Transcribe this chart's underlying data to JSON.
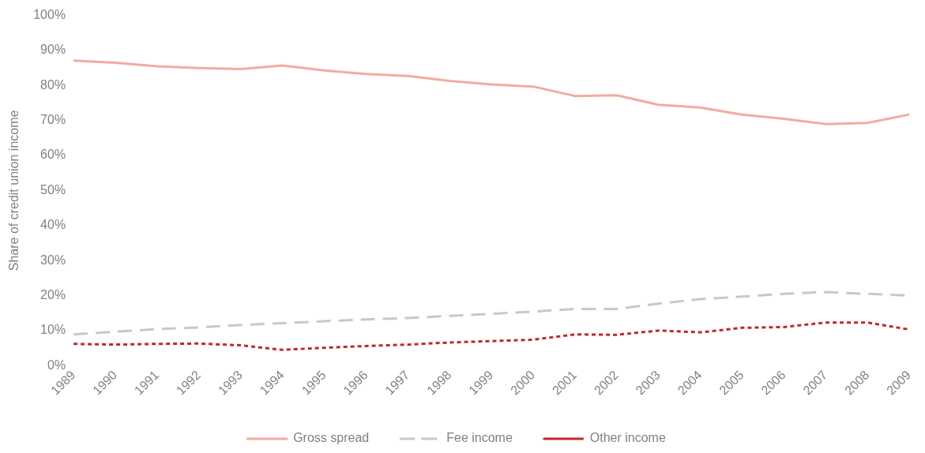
{
  "chart_data": {
    "type": "line",
    "ylabel": "Share of credit union income",
    "categories": [
      "1989",
      "1990",
      "1991",
      "1992",
      "1993",
      "1994",
      "1995",
      "1996",
      "1997",
      "1998",
      "1999",
      "2000",
      "2001",
      "2002",
      "2003",
      "2004",
      "2005",
      "2006",
      "2007",
      "2008",
      "2009"
    ],
    "series": [
      {
        "name": "Gross spread",
        "color": "#f2aba0",
        "line_style": "solid",
        "values": [
          87.1,
          86.5,
          85.5,
          85,
          84.7,
          85.7,
          84.3,
          83.3,
          82.7,
          81.3,
          80.3,
          79.7,
          77,
          77.2,
          74.5,
          73.7,
          71.7,
          70.5,
          69,
          69.3,
          71.7
        ]
      },
      {
        "name": "Fee income",
        "color": "#c8c8c8",
        "line_style": "dashed",
        "values": [
          8.9,
          9.7,
          10.4,
          10.9,
          11.6,
          12.1,
          12.7,
          13.2,
          13.6,
          14.2,
          14.8,
          15.4,
          16.2,
          16.2,
          17.7,
          19,
          19.7,
          20.5,
          21,
          20.5,
          20
        ]
      },
      {
        "name": "Other income",
        "color": "#c0272d",
        "line_style": "dotted",
        "values": [
          6.2,
          6,
          6.2,
          6.3,
          5.8,
          4.5,
          5.1,
          5.6,
          6,
          6.6,
          7,
          7.4,
          8.9,
          8.8,
          10,
          9.5,
          10.8,
          11,
          12.3,
          12.3,
          10.3
        ]
      }
    ],
    "ylim": [
      0,
      100
    ],
    "yticks": [
      {
        "value": 0,
        "label": "0%"
      },
      {
        "value": 10,
        "label": "10%"
      },
      {
        "value": 20,
        "label": "20%"
      },
      {
        "value": 30,
        "label": "30%"
      },
      {
        "value": 40,
        "label": "40%"
      },
      {
        "value": 50,
        "label": "50%"
      },
      {
        "value": 60,
        "label": "60%"
      },
      {
        "value": 70,
        "label": "70%"
      },
      {
        "value": 80,
        "label": "80%"
      },
      {
        "value": 90,
        "label": "90%"
      },
      {
        "value": 100,
        "label": "100%"
      }
    ],
    "grid": false,
    "legend": "bottom",
    "marker": "none"
  }
}
